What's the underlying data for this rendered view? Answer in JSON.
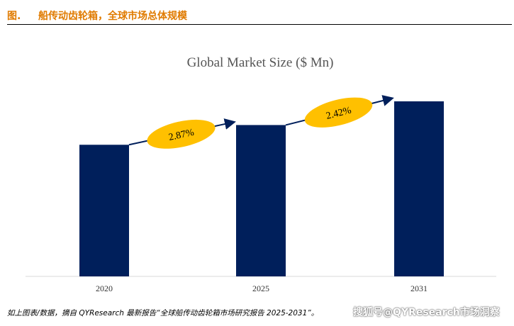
{
  "header": {
    "figure_label": "图.",
    "title": "船传动齿轮箱，全球市场总体规模"
  },
  "chart_data": {
    "type": "bar",
    "title": "Global Market Size ($ Mn)",
    "categories": [
      "2020",
      "2025",
      "2031"
    ],
    "values": [
      100,
      115,
      133
    ],
    "ylim": [
      0,
      140
    ],
    "xlabel": "",
    "ylabel": "",
    "grid": false,
    "legend": "none",
    "annotations": [
      {
        "label": "2.87%",
        "between": [
          "2020",
          "2025"
        ]
      },
      {
        "label": "2.42%",
        "between": [
          "2025",
          "2031"
        ]
      }
    ],
    "colors": {
      "bar": "#001f5b",
      "bubble": "#ffc000",
      "arrow": "#001f5b",
      "header": "#e07b00"
    }
  },
  "footer": {
    "source": "如上图表/数据，摘自 QYResearch 最新报告“全球船传动齿轮箱市场研究报告 2025-2031”。",
    "watermark": "搜狐号@QYResearch市场洞察"
  }
}
